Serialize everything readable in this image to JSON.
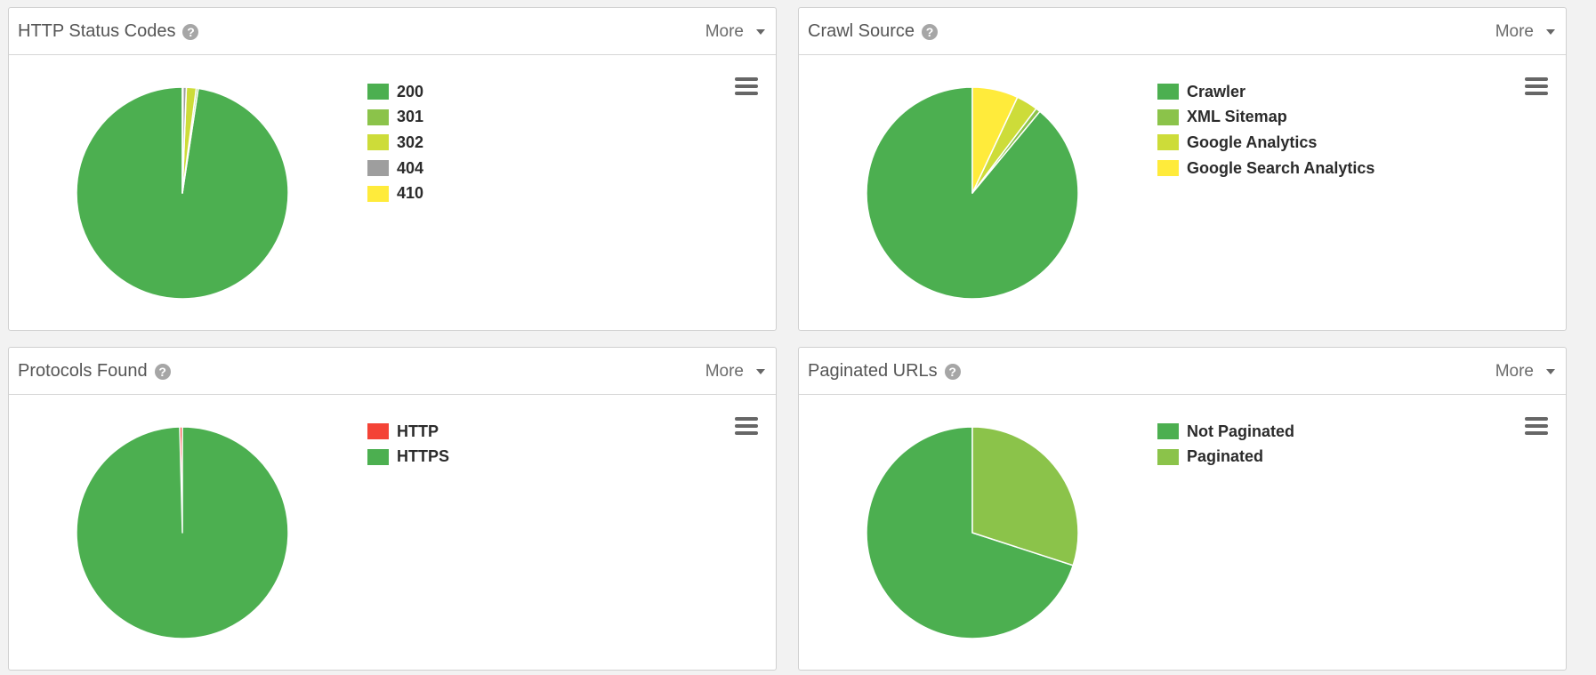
{
  "more_label": "More",
  "help_glyph": "?",
  "chart_data": [
    {
      "type": "pie",
      "title": "HTTP Status Codes",
      "labels": [
        "200",
        "301",
        "302",
        "404",
        "410"
      ],
      "values": [
        97.6,
        0.3,
        1.5,
        0.5,
        0.1
      ],
      "colors": [
        "#4caf50",
        "#8bc34a",
        "#cddc39",
        "#9e9e9e",
        "#ffeb3b"
      ],
      "legend_position": "right"
    },
    {
      "type": "pie",
      "title": "Crawl Source",
      "labels": [
        "Crawler",
        "XML Sitemap",
        "Google Analytics",
        "Google Search Analytics"
      ],
      "values": [
        89.0,
        0.7,
        3.3,
        7.0
      ],
      "colors": [
        "#4caf50",
        "#8bc34a",
        "#cddc39",
        "#ffeb3b"
      ],
      "legend_position": "right"
    },
    {
      "type": "pie",
      "title": "Protocols Found",
      "labels": [
        "HTTP",
        "HTTPS"
      ],
      "values": [
        0.4,
        99.6
      ],
      "colors": [
        "#f44336",
        "#4caf50"
      ],
      "legend_position": "right"
    },
    {
      "type": "pie",
      "title": "Paginated URLs",
      "labels": [
        "Not Paginated",
        "Paginated"
      ],
      "values": [
        70.0,
        30.0
      ],
      "colors": [
        "#4caf50",
        "#8bc34a"
      ],
      "legend_position": "right"
    }
  ]
}
